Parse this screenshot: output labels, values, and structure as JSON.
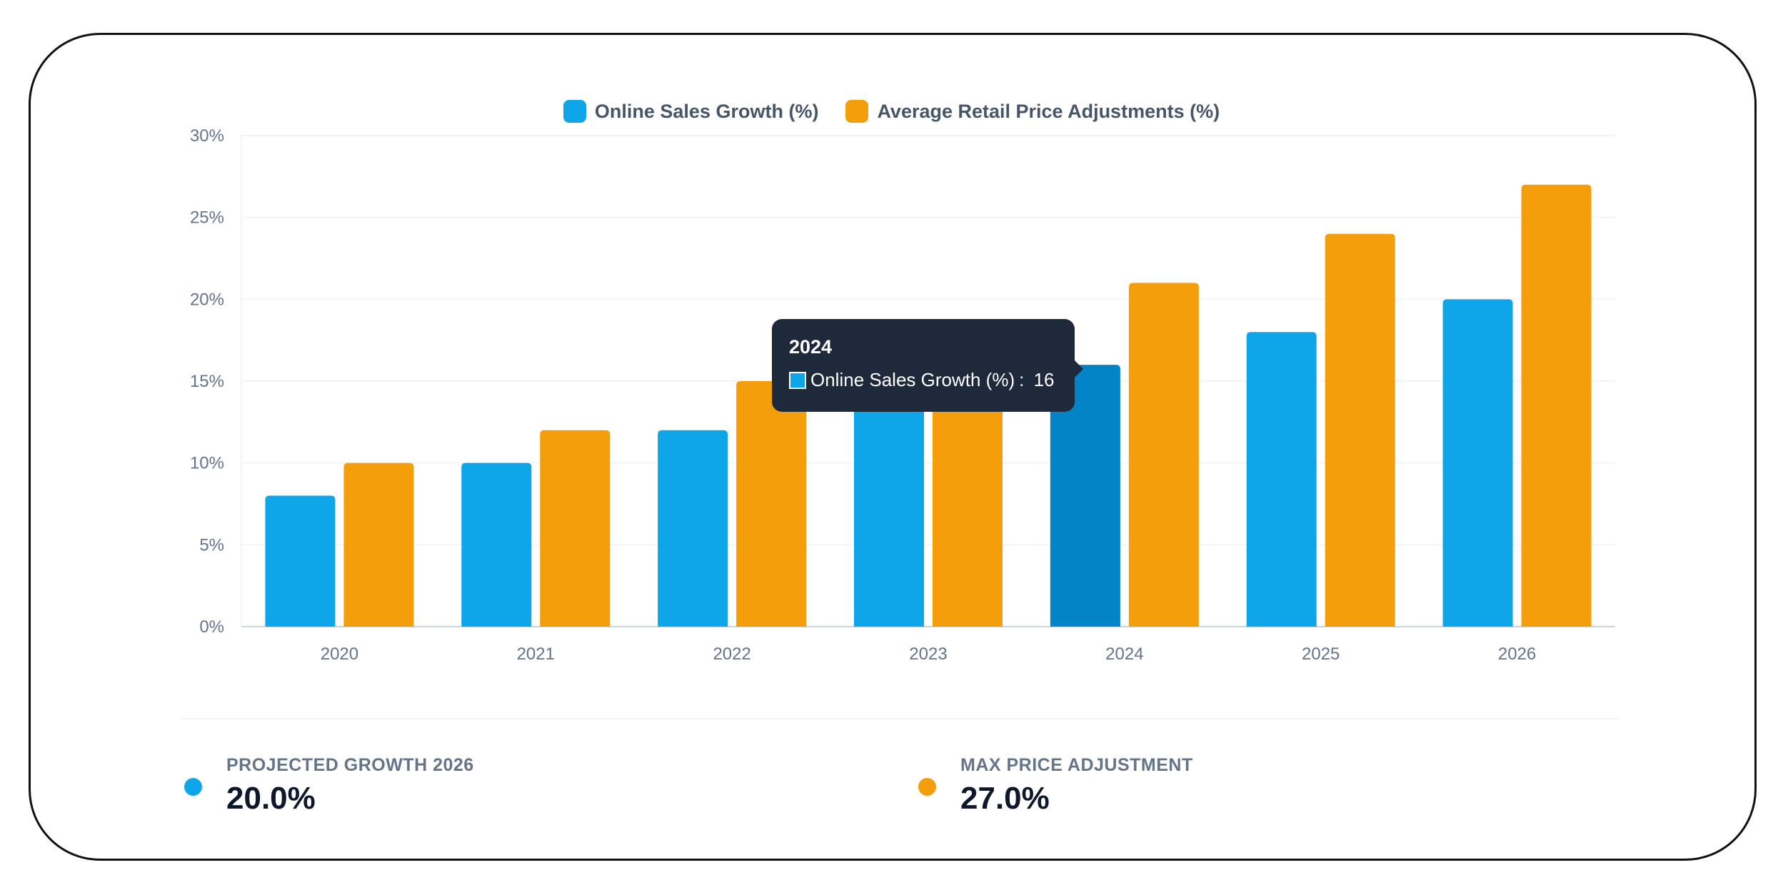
{
  "chart_data": {
    "type": "bar",
    "categories": [
      "2020",
      "2021",
      "2022",
      "2023",
      "2024",
      "2025",
      "2026"
    ],
    "series": [
      {
        "name": "Online Sales Growth (%)",
        "values": [
          8,
          10,
          12,
          14,
          16,
          18,
          20
        ],
        "color": "#0ea5e9",
        "hover_color": "#0284c7"
      },
      {
        "name": "Average Retail Price Adjustments (%)",
        "values": [
          10,
          12,
          15,
          15,
          21,
          24,
          27
        ],
        "color": "#f59e0b"
      }
    ],
    "y_ticks": [
      "0%",
      "5%",
      "10%",
      "15%",
      "20%",
      "25%",
      "30%"
    ],
    "ylim": [
      0,
      30
    ],
    "grid": true,
    "legend_position": "top-center"
  },
  "tooltip": {
    "title": "2024",
    "series_label": "Online Sales Growth (%)",
    "separator": ": ",
    "value": "16",
    "category": "2024"
  },
  "stats": [
    {
      "label": "PROJECTED GROWTH 2026",
      "value": "20.0%",
      "color": "#0ea5e9"
    },
    {
      "label": "MAX PRICE ADJUSTMENT",
      "value": "27.0%",
      "color": "#f59e0b"
    }
  ],
  "colors": {
    "axis": "#cbd5e1",
    "grid": "#f1f5f9",
    "tooltip_bg": "#1e293b"
  }
}
